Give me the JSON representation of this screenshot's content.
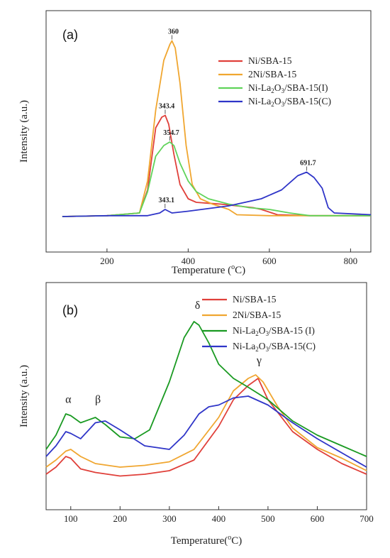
{
  "colors": {
    "red": "#e0403a",
    "orange": "#f0a630",
    "lightgreen": "#5fd35a",
    "green": "#1a9a22",
    "blue": "#2f35c8"
  },
  "chart_data": [
    {
      "panel": "(a)",
      "type": "line",
      "xlabel_main": "Temperature (",
      "xlabel_sup": "o",
      "xlabel_end": "C)",
      "ylabel": "Intensity (a.u.)",
      "xlim": [
        50,
        850
      ],
      "ylim": [
        0,
        100
      ],
      "xticks": [
        200,
        400,
        600,
        800
      ],
      "yticks_shown": false,
      "legend_position": "top-right",
      "series": [
        {
          "name_parts": [
            "Ni/SBA-15"
          ],
          "color_key": "red",
          "x": [
            90,
            200,
            280,
            300,
            320,
            335,
            343.4,
            352,
            365,
            380,
            400,
            420,
            450,
            480,
            520,
            560,
            580,
            620,
            700,
            800,
            850
          ],
          "y": [
            0,
            0.5,
            2,
            15,
            50,
            56,
            57,
            52,
            35,
            18,
            10,
            8,
            7.5,
            7,
            6,
            5,
            4,
            1,
            0.5,
            0.5,
            0.5
          ]
        },
        {
          "name_parts": [
            "2Ni/SBA-15"
          ],
          "color_key": "orange",
          "x": [
            90,
            200,
            280,
            300,
            320,
            340,
            355,
            360,
            368,
            380,
            395,
            410,
            430,
            460,
            500,
            520,
            600,
            700,
            850
          ],
          "y": [
            0,
            0.5,
            2,
            20,
            60,
            88,
            97,
            99,
            95,
            75,
            40,
            18,
            10,
            7,
            4,
            1,
            0.5,
            0.5,
            0.5
          ]
        },
        {
          "name_parts": [
            "Ni-La",
            "2",
            "O",
            "3",
            "/SBA-15(I)"
          ],
          "color_key": "lightgreen",
          "x": [
            90,
            200,
            280,
            300,
            320,
            340,
            354.7,
            365,
            380,
            400,
            420,
            450,
            500,
            550,
            600,
            650,
            700,
            850
          ],
          "y": [
            0,
            0.5,
            2,
            14,
            34,
            40,
            42,
            40,
            30,
            20,
            14,
            10,
            7,
            5,
            4,
            2,
            0.5,
            0.5
          ]
        },
        {
          "name_parts": [
            "Ni-La",
            "2",
            "O",
            "3",
            "/SBA-15(C)"
          ],
          "color_key": "blue",
          "x": [
            90,
            200,
            300,
            330,
            343.1,
            360,
            400,
            500,
            580,
            630,
            670,
            691.7,
            710,
            730,
            745,
            760,
            850
          ],
          "y": [
            0,
            0.5,
            0.5,
            2,
            4,
            2,
            3,
            6,
            10,
            15,
            23,
            25,
            22,
            16,
            5,
            2,
            1
          ]
        }
      ],
      "annotations": [
        {
          "text": "360",
          "x": 360,
          "y": 99
        },
        {
          "text": "343.4",
          "x": 343.4,
          "y": 57
        },
        {
          "text": "354.7",
          "x": 354.7,
          "y": 42
        },
        {
          "text": "343.1",
          "x": 343.1,
          "y": 4
        },
        {
          "text": "691.7",
          "x": 691.7,
          "y": 25
        }
      ]
    },
    {
      "panel": "(b)",
      "type": "line",
      "xlabel_main": "Temperature(",
      "xlabel_sup": "o",
      "xlabel_end": "C)",
      "ylabel": "Intensity (a.u.)",
      "xlim": [
        50,
        700
      ],
      "ylim": [
        0,
        100
      ],
      "xticks": [
        100,
        200,
        300,
        400,
        500,
        600,
        700
      ],
      "yticks_shown": false,
      "legend_position": "top-right",
      "series": [
        {
          "name_parts": [
            "Ni/SBA-15"
          ],
          "color_key": "red",
          "x": [
            50,
            70,
            90,
            100,
            120,
            150,
            200,
            250,
            300,
            350,
            400,
            430,
            460,
            480,
            500,
            550,
            600,
            650,
            700
          ],
          "y": [
            8,
            12,
            18,
            17,
            11,
            9,
            7,
            8,
            10,
            16,
            35,
            50,
            58,
            62,
            50,
            32,
            22,
            14,
            8
          ]
        },
        {
          "name_parts": [
            "2Ni/SBA-15"
          ],
          "color_key": "orange",
          "x": [
            50,
            70,
            90,
            100,
            120,
            150,
            200,
            250,
            300,
            350,
            400,
            430,
            460,
            475,
            490,
            520,
            550,
            600,
            650,
            700
          ],
          "y": [
            12,
            16,
            21,
            22,
            18,
            14,
            12,
            13,
            15,
            22,
            40,
            55,
            62,
            64,
            60,
            46,
            34,
            23,
            17,
            10
          ]
        },
        {
          "name_parts": [
            "Ni-La",
            "2",
            "O",
            "3",
            "/SBA-15 (I)"
          ],
          "color_key": "green",
          "x": [
            50,
            70,
            90,
            100,
            120,
            150,
            170,
            200,
            230,
            260,
            300,
            330,
            350,
            360,
            380,
            400,
            430,
            460,
            500,
            550,
            600,
            650,
            700
          ],
          "y": [
            22,
            30,
            42,
            41,
            37,
            40,
            36,
            29,
            28,
            33,
            60,
            85,
            94,
            92,
            82,
            70,
            62,
            57,
            50,
            38,
            30,
            24,
            18
          ]
        },
        {
          "name_parts": [
            "Ni-La",
            "2",
            "O",
            "3",
            "/SBA-15(C)"
          ],
          "color_key": "blue",
          "x": [
            50,
            70,
            90,
            100,
            120,
            150,
            170,
            200,
            250,
            300,
            330,
            360,
            380,
            400,
            430,
            460,
            500,
            550,
            600,
            650,
            700
          ],
          "y": [
            18,
            24,
            32,
            31,
            28,
            37,
            38,
            33,
            24,
            22,
            30,
            42,
            46,
            47,
            51,
            52,
            47,
            37,
            28,
            20,
            12
          ]
        }
      ],
      "annotations": [
        {
          "text": "α",
          "x": 95,
          "y": 45
        },
        {
          "text": "β",
          "x": 155,
          "y": 45
        },
        {
          "text": "δ",
          "x": 357,
          "y": 98
        },
        {
          "text": "γ",
          "x": 482,
          "y": 67
        }
      ]
    }
  ]
}
